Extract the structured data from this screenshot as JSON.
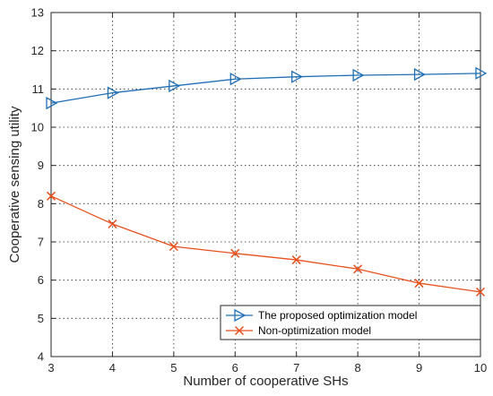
{
  "chart_data": {
    "type": "line",
    "xlabel": "Number of cooperative SHs",
    "ylabel": "Cooperative sensing utility",
    "xlim": [
      3,
      10
    ],
    "ylim": [
      4,
      13
    ],
    "xticks": [
      3,
      4,
      5,
      6,
      7,
      8,
      9,
      10
    ],
    "yticks": [
      4,
      5,
      6,
      7,
      8,
      9,
      10,
      11,
      12,
      13
    ],
    "grid": true,
    "legend_position": "bottom-right",
    "x": [
      3,
      4,
      5,
      6,
      7,
      8,
      9,
      10
    ],
    "series": [
      {
        "name": "The proposed optimization model",
        "values": [
          10.63,
          10.9,
          11.08,
          11.26,
          11.32,
          11.36,
          11.38,
          11.41
        ],
        "color": "#1f6fb5",
        "marker": "triangle-right"
      },
      {
        "name": "Non-optimization model",
        "values": [
          8.2,
          7.47,
          6.88,
          6.7,
          6.53,
          6.29,
          5.92,
          5.69
        ],
        "color": "#e8501c",
        "marker": "x"
      }
    ]
  }
}
